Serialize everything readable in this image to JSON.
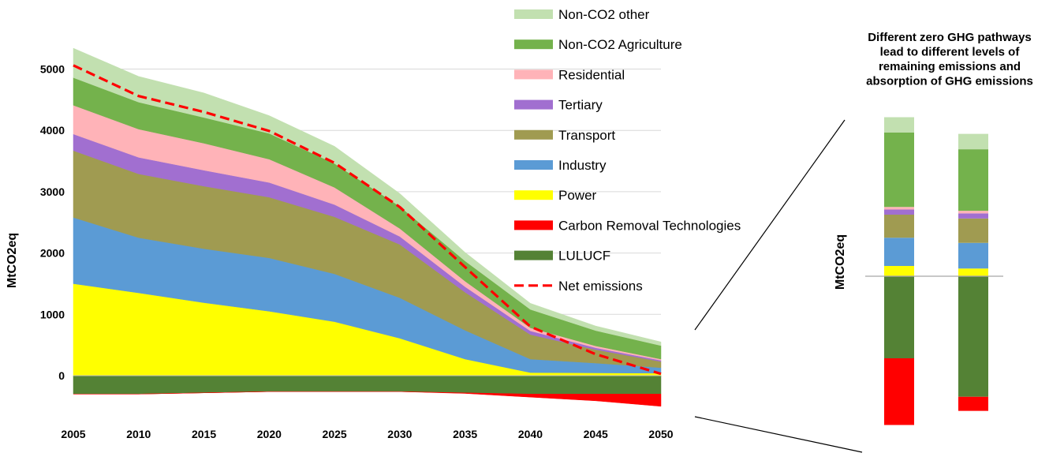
{
  "chart_data": [
    {
      "type": "area",
      "stacked": true,
      "ylabel": "MtCO2eq",
      "xlabel": "",
      "title": "",
      "x": [
        2005,
        2010,
        2015,
        2020,
        2025,
        2030,
        2035,
        2040,
        2045,
        2050
      ],
      "x_tick_labels": [
        "2005",
        "2010",
        "2015",
        "2020",
        "2025",
        "2030",
        "2035",
        "2040",
        "2045",
        "2050"
      ],
      "y_tick_labels": [
        "0",
        "1000",
        "2000",
        "3000",
        "4000",
        "5000"
      ],
      "ylim": [
        -600,
        5500
      ],
      "grid": true,
      "legend_position": "right",
      "positive_series": [
        {
          "name": "Power",
          "color": "#ffff00",
          "values": [
            1500,
            1350,
            1190,
            1050,
            880,
            610,
            270,
            50,
            45,
            40
          ]
        },
        {
          "name": "Industry",
          "color": "#5b9bd5",
          "values": [
            1080,
            900,
            880,
            870,
            780,
            660,
            470,
            220,
            160,
            90
          ]
        },
        {
          "name": "Transport",
          "color": "#a09b51",
          "values": [
            1090,
            1040,
            1020,
            990,
            930,
            870,
            620,
            400,
            220,
            100
          ]
        },
        {
          "name": "Tertiary",
          "color": "#a16fd0",
          "values": [
            270,
            270,
            260,
            240,
            200,
            130,
            90,
            60,
            30,
            20
          ]
        },
        {
          "name": "Residential",
          "color": "#ffb3b8",
          "values": [
            470,
            460,
            440,
            380,
            280,
            130,
            90,
            50,
            30,
            20
          ]
        },
        {
          "name": "Non-CO2 Agriculture",
          "color": "#74b24c",
          "values": [
            450,
            440,
            420,
            420,
            390,
            360,
            330,
            300,
            250,
            220
          ]
        },
        {
          "name": "Non-CO2 other",
          "color": "#c2e0b0",
          "values": [
            480,
            420,
            400,
            290,
            280,
            210,
            140,
            100,
            75,
            60
          ]
        }
      ],
      "negative_series": [
        {
          "name": "LULUCF",
          "color": "#548235",
          "values": [
            -300,
            -300,
            -280,
            -260,
            -260,
            -260,
            -280,
            -300,
            -300,
            -300
          ]
        },
        {
          "name": "Carbon Removal Technologies",
          "color": "#ff0000",
          "values": [
            0,
            0,
            0,
            0,
            0,
            0,
            -10,
            -50,
            -110,
            -200
          ]
        }
      ],
      "net_emissions": {
        "name": "Net emissions",
        "color": "#ff0000",
        "style": "dashed",
        "values": [
          5060,
          4560,
          4300,
          3990,
          3470,
          2750,
          1770,
          800,
          350,
          30
        ]
      },
      "legend": [
        {
          "name": "Non-CO2 other",
          "color": "#c2e0b0",
          "kind": "box"
        },
        {
          "name": "Non-CO2 Agriculture",
          "color": "#74b24c",
          "kind": "box"
        },
        {
          "name": "Residential",
          "color": "#ffb3b8",
          "kind": "box"
        },
        {
          "name": "Tertiary",
          "color": "#a16fd0",
          "kind": "box"
        },
        {
          "name": "Transport",
          "color": "#a09b51",
          "kind": "box"
        },
        {
          "name": "Industry",
          "color": "#5b9bd5",
          "kind": "box"
        },
        {
          "name": "Power",
          "color": "#ffff00",
          "kind": "box"
        },
        {
          "name": "Carbon Removal Technologies",
          "color": "#ff0000",
          "kind": "box"
        },
        {
          "name": "LULUCF",
          "color": "#548235",
          "kind": "box"
        },
        {
          "name": "Net emissions",
          "color": "#ff0000",
          "kind": "dash"
        }
      ]
    },
    {
      "type": "bar",
      "stacked": true,
      "title_lines": [
        "Different zero GHG pathways",
        "lead to different levels of",
        "remaining emissions and",
        "absorption of GHG emissions"
      ],
      "ylabel": "MtCO2eq",
      "xlabel": "",
      "categories": [
        "",
        ""
      ],
      "ylim": [
        -600,
        600
      ],
      "positive_series": [
        {
          "name": "Power",
          "color": "#ffff00",
          "values": [
            40,
            30
          ]
        },
        {
          "name": "Industry",
          "color": "#5b9bd5",
          "values": [
            110,
            100
          ]
        },
        {
          "name": "Transport",
          "color": "#a09b51",
          "values": [
            90,
            95
          ]
        },
        {
          "name": "Tertiary",
          "color": "#a16fd0",
          "values": [
            20,
            20
          ]
        },
        {
          "name": "Residential",
          "color": "#ffb3b8",
          "values": [
            10,
            10
          ]
        },
        {
          "name": "Non-CO2 Agriculture",
          "color": "#74b24c",
          "values": [
            290,
            240
          ]
        },
        {
          "name": "Non-CO2 other",
          "color": "#c2e0b0",
          "values": [
            60,
            60
          ]
        }
      ],
      "negative_series": [
        {
          "name": "LULUCF",
          "color": "#548235",
          "values": [
            -320,
            -470
          ]
        },
        {
          "name": "Carbon Removal Technologies",
          "color": "#ff0000",
          "values": [
            -260,
            -55
          ]
        }
      ]
    }
  ]
}
